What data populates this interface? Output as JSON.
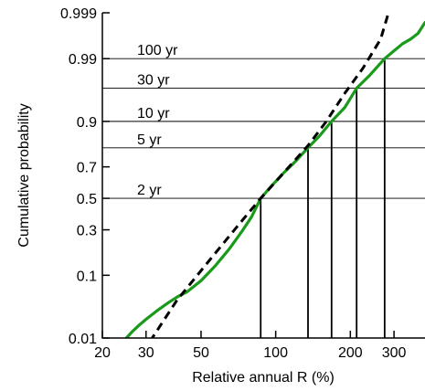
{
  "chart_data": {
    "type": "line",
    "xlabel": "Relative annual R (%)",
    "ylabel": "Cumulative probability",
    "x_scale": "log",
    "y_scale": "probability",
    "xlim": [
      20,
      400
    ],
    "ylim": [
      0.01,
      0.999
    ],
    "x_ticks": [
      {
        "value": 20,
        "label": "20"
      },
      {
        "value": 30,
        "label": "30"
      },
      {
        "value": 50,
        "label": "50"
      },
      {
        "value": 100,
        "label": "100"
      },
      {
        "value": 200,
        "label": "200"
      },
      {
        "value": 300,
        "label": "300"
      }
    ],
    "y_ticks": [
      {
        "value": 0.01,
        "label": "0.01"
      },
      {
        "value": 0.1,
        "label": "0.1"
      },
      {
        "value": 0.3,
        "label": "0.3"
      },
      {
        "value": 0.5,
        "label": "0.5"
      },
      {
        "value": 0.7,
        "label": "0.7"
      },
      {
        "value": 0.9,
        "label": "0.9"
      },
      {
        "value": 0.99,
        "label": "0.99"
      },
      {
        "value": 0.999,
        "label": "0.999"
      }
    ],
    "return_periods": [
      {
        "label": "2 yr",
        "p": 0.5,
        "x": 87
      },
      {
        "label": "5 yr",
        "p": 0.8,
        "x": 135
      },
      {
        "label": "10 yr",
        "p": 0.9,
        "x": 168
      },
      {
        "label": "30 yr",
        "p": 0.9667,
        "x": 212
      },
      {
        "label": "100 yr",
        "p": 0.99,
        "x": 275
      }
    ],
    "series": [
      {
        "color": "#1a9a1a",
        "style": "solid",
        "points": [
          [
            25,
            0.01
          ],
          [
            26.3,
            0.013
          ],
          [
            28,
            0.017
          ],
          [
            30,
            0.022
          ],
          [
            33,
            0.03
          ],
          [
            36.5,
            0.04
          ],
          [
            40,
            0.05
          ],
          [
            44,
            0.06
          ],
          [
            50,
            0.085
          ],
          [
            57,
            0.13
          ],
          [
            65,
            0.2
          ],
          [
            73,
            0.29
          ],
          [
            80,
            0.38
          ],
          [
            87,
            0.5
          ],
          [
            96,
            0.58
          ],
          [
            107,
            0.66
          ],
          [
            120,
            0.73
          ],
          [
            135,
            0.8
          ],
          [
            150,
            0.85
          ],
          [
            168,
            0.9
          ],
          [
            190,
            0.935
          ],
          [
            212,
            0.9667
          ],
          [
            240,
            0.98
          ],
          [
            275,
            0.99
          ],
          [
            300,
            0.993
          ],
          [
            325,
            0.995
          ],
          [
            350,
            0.996
          ],
          [
            375,
            0.997
          ],
          [
            400,
            0.9983
          ]
        ]
      },
      {
        "color": "#000000",
        "style": "dashed",
        "points": [
          [
            29,
            0.005
          ],
          [
            40,
            0.045
          ],
          [
            55,
            0.16
          ],
          [
            70,
            0.32
          ],
          [
            87,
            0.5
          ],
          [
            110,
            0.68
          ],
          [
            135,
            0.81
          ],
          [
            160,
            0.9
          ],
          [
            190,
            0.96
          ],
          [
            225,
            0.985
          ],
          [
            265,
            0.996
          ],
          [
            285,
            0.999
          ]
        ]
      }
    ]
  }
}
